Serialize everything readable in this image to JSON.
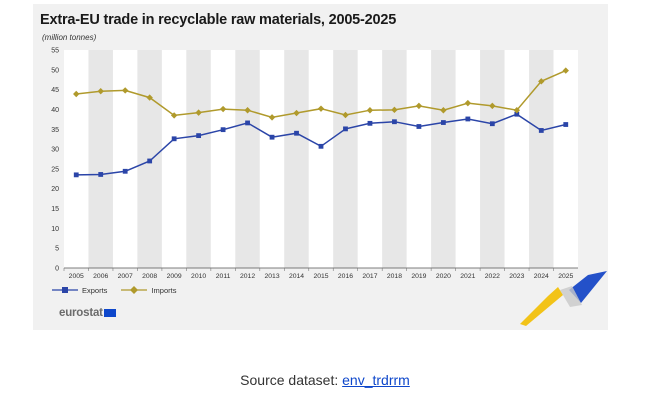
{
  "chart_data": {
    "type": "line",
    "title": "Extra-EU trade in recyclable raw materials, 2005-2025",
    "unit_label": "(million tonnes)",
    "x": [
      "2005",
      "2006",
      "2007",
      "2008",
      "2009",
      "2010",
      "2011",
      "2012",
      "2013",
      "2014",
      "2015",
      "2016",
      "2017",
      "2018",
      "2019",
      "2020",
      "2021",
      "2022",
      "2023",
      "2024",
      "2025"
    ],
    "series": [
      {
        "name": "Exports",
        "color": "#2b45a8",
        "marker": "square",
        "values": [
          23.5,
          23.6,
          24.4,
          27.0,
          32.6,
          33.4,
          34.9,
          36.6,
          33.0,
          34.0,
          30.7,
          35.1,
          36.5,
          36.9,
          35.7,
          36.7,
          37.6,
          36.4,
          38.8,
          34.7,
          36.2
        ]
      },
      {
        "name": "Imports",
        "color": "#b09a2c",
        "marker": "diamond",
        "values": [
          43.9,
          44.6,
          44.8,
          43.0,
          38.5,
          39.2,
          40.1,
          39.8,
          38.0,
          39.1,
          40.2,
          38.6,
          39.8,
          39.9,
          40.9,
          39.8,
          41.6,
          40.9,
          39.8,
          47.1,
          49.8
        ]
      }
    ],
    "ylim": [
      0,
      55
    ],
    "yticks": [
      0,
      5,
      10,
      15,
      20,
      25,
      30,
      35,
      40,
      45,
      50,
      55
    ],
    "grid": "alternating vertical bands",
    "legend_position": "bottom-left"
  },
  "branding": {
    "logo_text": "eurostat"
  },
  "source": {
    "label": "Source dataset:",
    "link_text": "env_trdrrm"
  }
}
